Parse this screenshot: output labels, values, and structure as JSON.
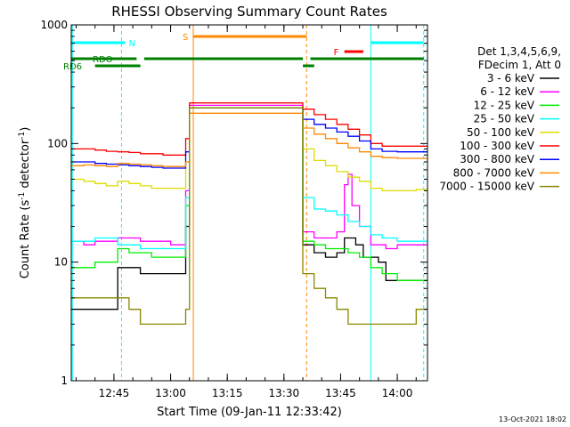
{
  "chart_data": {
    "type": "line",
    "title": "RHESSI Observing Summary Count Rates",
    "xlabel": "Start Time (09-Jan-11 12:33:42)",
    "ylabel": "Count Rate (s",
    "ylabel_sup": "-1",
    "ylabel_tail": " detector",
    "ylabel_sup2": "-1",
    "ylabel_close": ")",
    "y_scale": "log",
    "ylim": [
      1,
      1000
    ],
    "xlim": [
      "12:33:42",
      "14:08:00"
    ],
    "x_ticks": [
      "12:45",
      "13:00",
      "13:15",
      "13:30",
      "13:45",
      "14:00"
    ],
    "y_ticks": [
      "1",
      "10",
      "100",
      "1000"
    ],
    "legend_title": [
      "Det 1,3,4,5,6,9,",
      "FDecim 1, Att 0"
    ],
    "footer_date": "13-Oct-2021 18:02",
    "colors": {
      "3-6": "#000000",
      "6-12": "#ff00ff",
      "12-25": "#00ee00",
      "25-50": "#00ffff",
      "50-100": "#dddd00",
      "100-300": "#ff0000",
      "300-800": "#0000ff",
      "800-7000": "#ff8800",
      "7000-15000": "#888800"
    },
    "series": [
      {
        "name": "3 - 6 keV",
        "key": "3-6",
        "points": [
          [
            "12:33:42",
            4
          ],
          [
            "12:37",
            4
          ],
          [
            "12:40",
            4
          ],
          [
            "12:43",
            4
          ],
          [
            "12:46",
            9
          ],
          [
            "12:49",
            9
          ],
          [
            "12:52",
            8
          ],
          [
            "12:55",
            8
          ],
          [
            "12:58",
            8
          ],
          [
            "13:00",
            8
          ],
          [
            "13:04",
            20
          ],
          [
            "13:05",
            200
          ],
          [
            "13:35",
            14
          ],
          [
            "13:38",
            12
          ],
          [
            "13:41",
            11
          ],
          [
            "13:44",
            12
          ],
          [
            "13:46",
            16
          ],
          [
            "13:49",
            14
          ],
          [
            "13:51",
            11
          ],
          [
            "13:55",
            10
          ],
          [
            "13:57",
            7
          ],
          [
            "14:00",
            7
          ],
          [
            "14:03",
            7
          ],
          [
            "14:05",
            7
          ]
        ]
      },
      {
        "name": "6 - 12 keV",
        "key": "6-12",
        "points": [
          [
            "12:33:42",
            15
          ],
          [
            "12:37",
            14
          ],
          [
            "12:40",
            15
          ],
          [
            "12:43",
            15
          ],
          [
            "12:46",
            16
          ],
          [
            "12:49",
            16
          ],
          [
            "12:52",
            15
          ],
          [
            "12:55",
            15
          ],
          [
            "12:58",
            15
          ],
          [
            "13:00",
            14
          ],
          [
            "13:04",
            40
          ],
          [
            "13:05",
            210
          ],
          [
            "13:35",
            18
          ],
          [
            "13:38",
            16
          ],
          [
            "13:41",
            16
          ],
          [
            "13:44",
            18
          ],
          [
            "13:46",
            45
          ],
          [
            "13:47",
            55
          ],
          [
            "13:48",
            30
          ],
          [
            "13:50",
            20
          ],
          [
            "13:53",
            14
          ],
          [
            "13:57",
            13
          ],
          [
            "14:00",
            14
          ],
          [
            "14:05",
            14
          ]
        ]
      },
      {
        "name": "12 - 25 keV",
        "key": "12-25",
        "points": [
          [
            "12:33:42",
            9
          ],
          [
            "12:37",
            9
          ],
          [
            "12:40",
            10
          ],
          [
            "12:43",
            10
          ],
          [
            "12:46",
            13
          ],
          [
            "12:49",
            12
          ],
          [
            "12:52",
            12
          ],
          [
            "12:55",
            11
          ],
          [
            "12:58",
            11
          ],
          [
            "13:00",
            11
          ],
          [
            "13:04",
            30
          ],
          [
            "13:05",
            200
          ],
          [
            "13:35",
            15
          ],
          [
            "13:38",
            14
          ],
          [
            "13:41",
            13
          ],
          [
            "13:44",
            13
          ],
          [
            "13:47",
            12
          ],
          [
            "13:50",
            11
          ],
          [
            "13:53",
            9
          ],
          [
            "13:56",
            8
          ],
          [
            "14:00",
            7
          ],
          [
            "14:05",
            7
          ]
        ]
      },
      {
        "name": "25 - 50 keV",
        "key": "25-50",
        "points": [
          [
            "12:33:42",
            15
          ],
          [
            "12:37",
            15
          ],
          [
            "12:40",
            16
          ],
          [
            "12:43",
            16
          ],
          [
            "12:46",
            14
          ],
          [
            "12:49",
            14
          ],
          [
            "12:52",
            13
          ],
          [
            "12:55",
            13
          ],
          [
            "12:58",
            13
          ],
          [
            "13:00",
            13
          ],
          [
            "13:04",
            35
          ],
          [
            "13:05",
            200
          ],
          [
            "13:35",
            35
          ],
          [
            "13:38",
            28
          ],
          [
            "13:41",
            27
          ],
          [
            "13:44",
            25
          ],
          [
            "13:47",
            22
          ],
          [
            "13:50",
            20
          ],
          [
            "13:53",
            17
          ],
          [
            "13:56",
            16
          ],
          [
            "14:00",
            15
          ],
          [
            "14:05",
            15
          ]
        ]
      },
      {
        "name": "50 - 100 keV",
        "key": "50-100",
        "points": [
          [
            "12:33:42",
            50
          ],
          [
            "12:37",
            48
          ],
          [
            "12:40",
            46
          ],
          [
            "12:43",
            44
          ],
          [
            "12:46",
            48
          ],
          [
            "12:49",
            46
          ],
          [
            "12:52",
            44
          ],
          [
            "12:55",
            42
          ],
          [
            "12:58",
            42
          ],
          [
            "13:00",
            42
          ],
          [
            "13:04",
            70
          ],
          [
            "13:05",
            200
          ],
          [
            "13:35",
            90
          ],
          [
            "13:38",
            72
          ],
          [
            "13:41",
            65
          ],
          [
            "13:44",
            58
          ],
          [
            "13:47",
            52
          ],
          [
            "13:50",
            48
          ],
          [
            "13:53",
            42
          ],
          [
            "13:56",
            40
          ],
          [
            "14:00",
            40
          ],
          [
            "14:05",
            41
          ]
        ]
      },
      {
        "name": "100 - 300 keV",
        "key": "100-300",
        "points": [
          [
            "12:33:42",
            90
          ],
          [
            "12:37",
            90
          ],
          [
            "12:40",
            88
          ],
          [
            "12:43",
            86
          ],
          [
            "12:46",
            85
          ],
          [
            "12:49",
            84
          ],
          [
            "12:52",
            82
          ],
          [
            "12:55",
            82
          ],
          [
            "12:58",
            80
          ],
          [
            "13:00",
            80
          ],
          [
            "13:04",
            110
          ],
          [
            "13:05",
            220
          ],
          [
            "13:35",
            195
          ],
          [
            "13:38",
            175
          ],
          [
            "13:41",
            160
          ],
          [
            "13:44",
            145
          ],
          [
            "13:47",
            132
          ],
          [
            "13:50",
            118
          ],
          [
            "13:53",
            100
          ],
          [
            "13:56",
            95
          ],
          [
            "14:00",
            95
          ],
          [
            "14:05",
            95
          ]
        ]
      },
      {
        "name": "300 - 800 keV",
        "key": "300-800",
        "points": [
          [
            "12:33:42",
            70
          ],
          [
            "12:37",
            70
          ],
          [
            "12:40",
            68
          ],
          [
            "12:43",
            67
          ],
          [
            "12:46",
            66
          ],
          [
            "12:49",
            65
          ],
          [
            "12:52",
            64
          ],
          [
            "12:55",
            63
          ],
          [
            "12:58",
            62
          ],
          [
            "13:00",
            62
          ],
          [
            "13:04",
            85
          ],
          [
            "13:05",
            200
          ],
          [
            "13:35",
            160
          ],
          [
            "13:38",
            145
          ],
          [
            "13:41",
            135
          ],
          [
            "13:44",
            125
          ],
          [
            "13:47",
            115
          ],
          [
            "13:50",
            105
          ],
          [
            "13:53",
            90
          ],
          [
            "13:56",
            86
          ],
          [
            "14:00",
            85
          ],
          [
            "14:05",
            85
          ]
        ]
      },
      {
        "name": "800 - 7000 keV",
        "key": "800-7000",
        "points": [
          [
            "12:33:42",
            65
          ],
          [
            "12:37",
            66
          ],
          [
            "12:40",
            65
          ],
          [
            "12:43",
            64
          ],
          [
            "12:46",
            68
          ],
          [
            "12:49",
            67
          ],
          [
            "12:52",
            66
          ],
          [
            "12:55",
            65
          ],
          [
            "12:58",
            64
          ],
          [
            "13:00",
            64
          ],
          [
            "13:04",
            70
          ],
          [
            "13:05",
            180
          ],
          [
            "13:35",
            135
          ],
          [
            "13:38",
            120
          ],
          [
            "13:41",
            110
          ],
          [
            "13:44",
            100
          ],
          [
            "13:47",
            92
          ],
          [
            "13:50",
            85
          ],
          [
            "13:53",
            78
          ],
          [
            "13:56",
            76
          ],
          [
            "14:00",
            75
          ],
          [
            "14:05",
            75
          ]
        ]
      },
      {
        "name": "7000 - 15000 keV",
        "key": "7000-15000",
        "points": [
          [
            "12:33:42",
            5
          ],
          [
            "12:37",
            5
          ],
          [
            "12:40",
            5
          ],
          [
            "12:43",
            5
          ],
          [
            "12:46",
            5
          ],
          [
            "12:49",
            4
          ],
          [
            "12:52",
            3
          ],
          [
            "12:55",
            3
          ],
          [
            "12:58",
            3
          ],
          [
            "13:00",
            3
          ],
          [
            "13:04",
            4
          ],
          [
            "13:05",
            200
          ],
          [
            "13:35",
            8
          ],
          [
            "13:38",
            6
          ],
          [
            "13:41",
            5
          ],
          [
            "13:44",
            4
          ],
          [
            "13:47",
            3
          ],
          [
            "13:50",
            3
          ],
          [
            "13:53",
            3
          ],
          [
            "13:56",
            3
          ],
          [
            "14:00",
            3
          ],
          [
            "14:05",
            4
          ]
        ]
      }
    ],
    "flag_bars": [
      {
        "label": "N",
        "color": "#00ffff",
        "level": "high",
        "segments": [
          [
            "12:33:42",
            "12:48"
          ],
          [
            "13:53",
            "14:07"
          ]
        ]
      },
      {
        "label": "S",
        "color": "#ff8800",
        "level": "top",
        "segments": [
          [
            "13:06",
            "13:36"
          ]
        ]
      },
      {
        "label": "F",
        "color": "#ff0000",
        "level": "mid",
        "segments": [
          [
            "13:46",
            "13:51"
          ]
        ]
      },
      {
        "label": "RDO",
        "color": "#008000",
        "level": "rdo",
        "segments": [
          [
            "12:33:42",
            "12:51"
          ],
          [
            "12:53",
            "13:35"
          ],
          [
            "13:37",
            "14:07"
          ]
        ]
      },
      {
        "label": "RD6",
        "color": "#008000",
        "level": "rd6",
        "segments": [
          [
            "12:33:42",
            "12:34"
          ],
          [
            "12:40",
            "12:52"
          ],
          [
            "13:35",
            "13:38"
          ]
        ]
      }
    ],
    "vertical_lines": [
      {
        "time": "12:34",
        "color": "#00ffff",
        "style": "solid"
      },
      {
        "time": "12:47",
        "color": "#00ffff",
        "style": "dashed"
      },
      {
        "time": "13:06",
        "color": "#ff8800",
        "style": "solid"
      },
      {
        "time": "13:36",
        "color": "#ff8800",
        "style": "dashed"
      },
      {
        "time": "13:53",
        "color": "#00ffff",
        "style": "solid"
      },
      {
        "time": "14:07",
        "color": "#00ffff",
        "style": "dashed"
      }
    ]
  }
}
